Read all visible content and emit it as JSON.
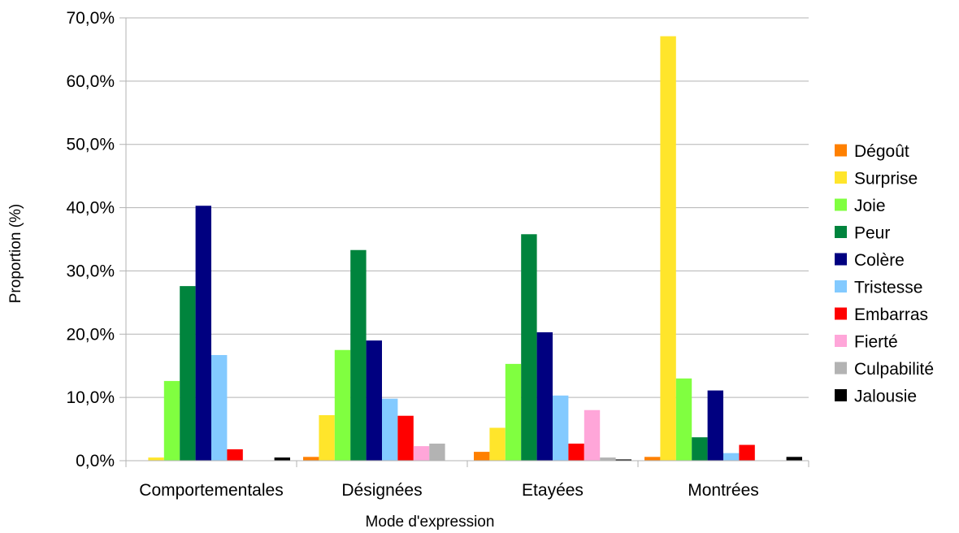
{
  "chart_data": {
    "type": "bar",
    "title": "",
    "xlabel": "Mode d'expression",
    "ylabel": "Proportion (%)",
    "ylim": [
      0,
      70
    ],
    "yticks": [
      "0,0%",
      "10,0%",
      "20,0%",
      "30,0%",
      "40,0%",
      "50,0%",
      "60,0%",
      "70,0%"
    ],
    "grid": true,
    "legend_position": "right",
    "categories": [
      "Comportementales",
      "Désignées",
      "Etayées",
      "Montrées"
    ],
    "series": [
      {
        "name": "Dégoût",
        "color": "#ff8000",
        "values": [
          0.0,
          0.6,
          1.4,
          0.6
        ]
      },
      {
        "name": "Surprise",
        "color": "#ffe52b",
        "values": [
          0.5,
          7.2,
          5.2,
          67.1
        ]
      },
      {
        "name": "Joie",
        "color": "#80ff40",
        "values": [
          12.6,
          17.5,
          15.3,
          13.0
        ]
      },
      {
        "name": "Peur",
        "color": "#00843d",
        "values": [
          27.6,
          33.3,
          35.8,
          3.7
        ]
      },
      {
        "name": "Colère",
        "color": "#000080",
        "values": [
          40.3,
          19.0,
          20.3,
          11.1
        ]
      },
      {
        "name": "Tristesse",
        "color": "#83caff",
        "values": [
          16.7,
          9.8,
          10.3,
          1.2
        ]
      },
      {
        "name": "Embarras",
        "color": "#ff0000",
        "values": [
          1.8,
          7.1,
          2.7,
          2.5
        ]
      },
      {
        "name": "Fierté",
        "color": "#ffa6d9",
        "values": [
          0.0,
          2.3,
          8.0,
          0.0
        ]
      },
      {
        "name": "Culpabilité",
        "color": "#b3b3b3",
        "values": [
          0.0,
          2.7,
          0.5,
          0.0
        ]
      },
      {
        "name": "Jalousie",
        "color": "#000000",
        "values": [
          0.5,
          0.0,
          0.2,
          0.6
        ]
      }
    ]
  }
}
